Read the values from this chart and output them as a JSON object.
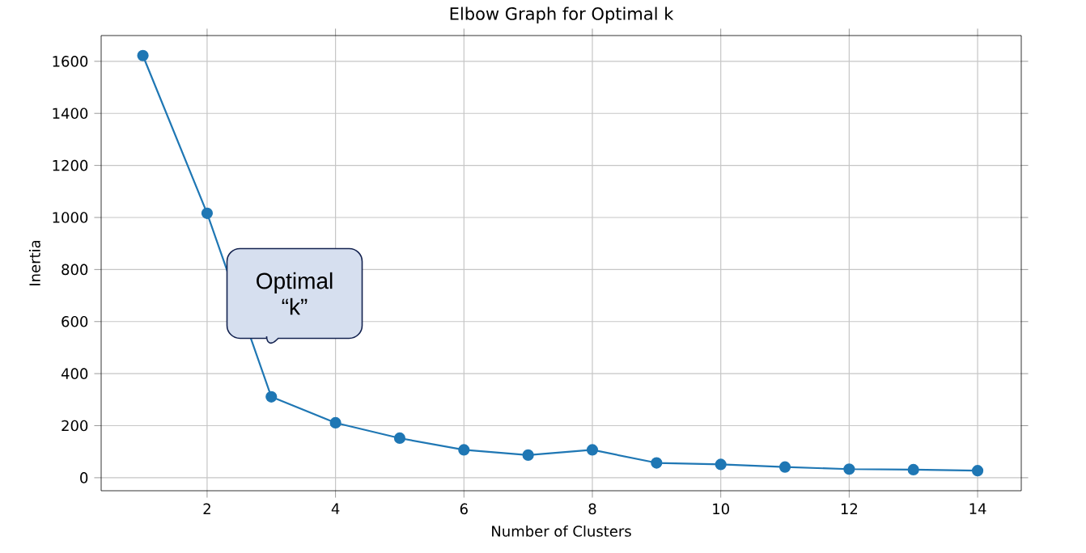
{
  "chart_data": {
    "type": "line",
    "title": "Elbow Graph for Optimal k",
    "xlabel": "Number of Clusters",
    "ylabel": "Inertia",
    "x": [
      1,
      2,
      3,
      4,
      5,
      6,
      7,
      8,
      9,
      10,
      11,
      12,
      13,
      14
    ],
    "values": [
      1622,
      1016,
      311,
      211,
      152,
      107,
      87,
      107,
      57,
      51,
      41,
      33,
      31,
      27
    ],
    "color": "#1f77b4",
    "marker": "circle",
    "grid": true,
    "xlim": [
      0.35,
      14.68
    ],
    "ylim": [
      -50,
      1699
    ],
    "xticks": [
      2,
      4,
      6,
      8,
      10,
      12,
      14
    ],
    "yticks": [
      0,
      200,
      400,
      600,
      800,
      1000,
      1200,
      1400,
      1600
    ],
    "annotations": [
      "Optimal “k”"
    ]
  }
}
